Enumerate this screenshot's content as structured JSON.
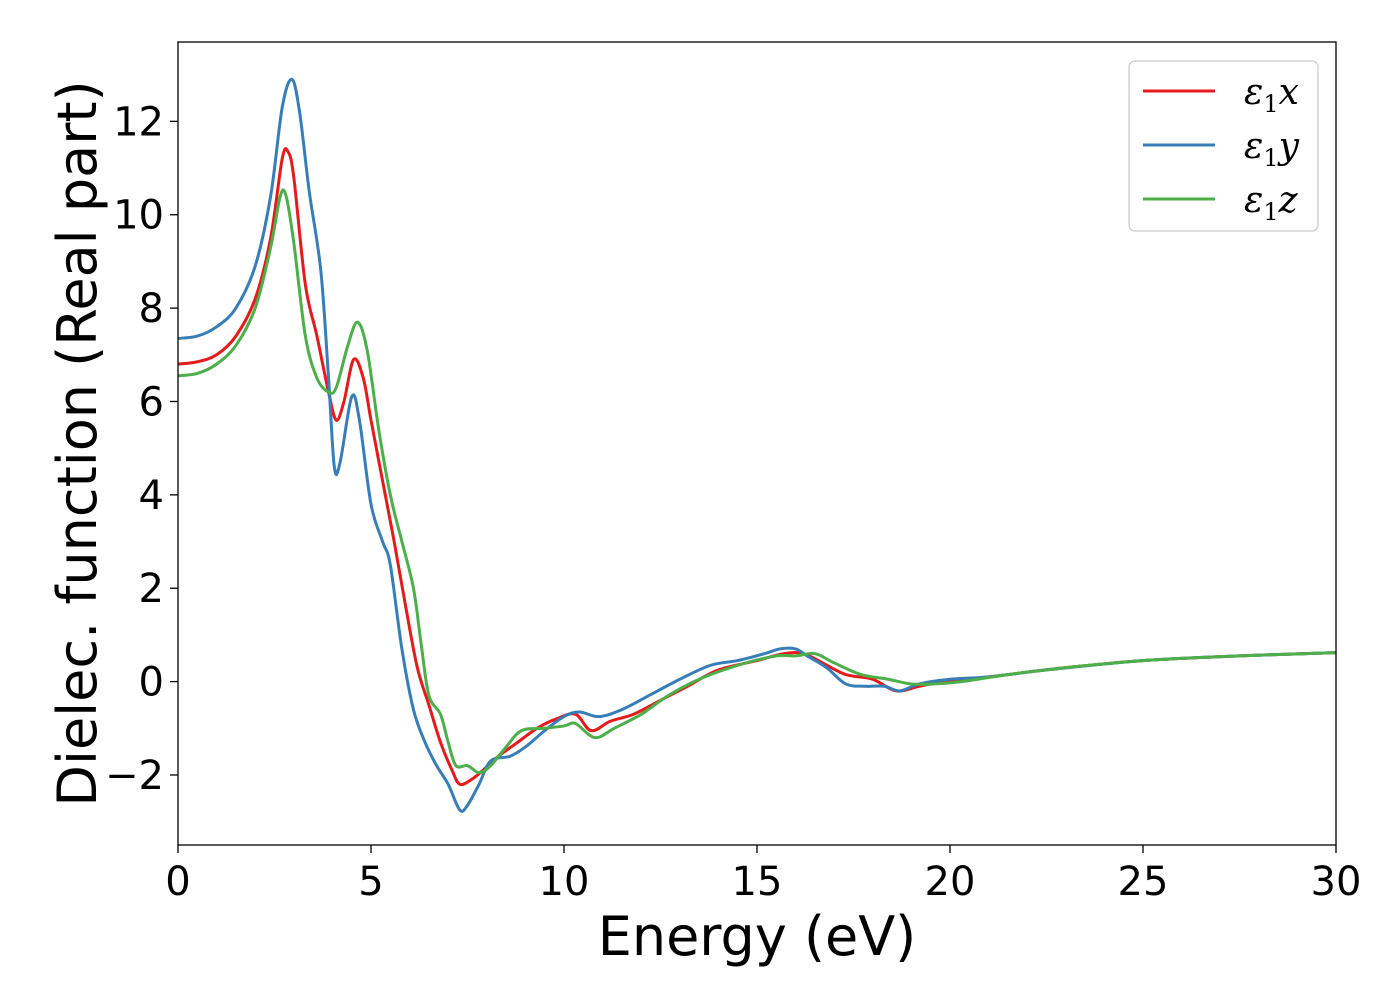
{
  "chart_data": {
    "type": "line",
    "title": "",
    "xlabel": "Energy (eV)",
    "ylabel": "Dielec. function (Real part)",
    "xlim": [
      0,
      30
    ],
    "ylim": [
      -3.5,
      13.7
    ],
    "xticks": [
      0,
      5,
      10,
      15,
      20,
      25,
      30
    ],
    "xtick_labels": [
      "0",
      "5",
      "10",
      "15",
      "20",
      "25",
      "30"
    ],
    "yticks": [
      -2,
      0,
      2,
      4,
      6,
      8,
      10,
      12
    ],
    "ytick_labels": [
      "−2",
      "0",
      "2",
      "4",
      "6",
      "8",
      "10",
      "12"
    ],
    "grid": false,
    "legend_position": "top-right",
    "series": [
      {
        "name": "ε1x",
        "legend_main": "ε",
        "legend_sub": "1",
        "legend_tail": "x",
        "color": "#e41a1c",
        "points": [
          [
            0,
            6.8
          ],
          [
            0.5,
            6.85
          ],
          [
            1,
            7.0
          ],
          [
            1.5,
            7.4
          ],
          [
            2,
            8.2
          ],
          [
            2.4,
            9.5
          ],
          [
            2.7,
            11.2
          ],
          [
            2.85,
            11.35
          ],
          [
            3.0,
            10.8
          ],
          [
            3.3,
            8.5
          ],
          [
            3.6,
            7.4
          ],
          [
            3.9,
            6.2
          ],
          [
            4.1,
            5.6
          ],
          [
            4.3,
            6.0
          ],
          [
            4.55,
            6.9
          ],
          [
            4.8,
            6.5
          ],
          [
            5.0,
            5.6
          ],
          [
            5.3,
            4.3
          ],
          [
            5.6,
            3.0
          ],
          [
            5.9,
            1.6
          ],
          [
            6.2,
            0.3
          ],
          [
            6.5,
            -0.5
          ],
          [
            6.8,
            -1.3
          ],
          [
            7.1,
            -1.9
          ],
          [
            7.3,
            -2.2
          ],
          [
            7.6,
            -2.1
          ],
          [
            7.9,
            -1.9
          ],
          [
            8.3,
            -1.6
          ],
          [
            8.8,
            -1.3
          ],
          [
            9.3,
            -1.0
          ],
          [
            9.8,
            -0.8
          ],
          [
            10.3,
            -0.7
          ],
          [
            10.7,
            -1.05
          ],
          [
            11.2,
            -0.85
          ],
          [
            11.8,
            -0.7
          ],
          [
            12.5,
            -0.4
          ],
          [
            13.2,
            -0.1
          ],
          [
            14.0,
            0.25
          ],
          [
            15.0,
            0.45
          ],
          [
            15.7,
            0.6
          ],
          [
            16.2,
            0.6
          ],
          [
            16.7,
            0.4
          ],
          [
            17.3,
            0.15
          ],
          [
            18.0,
            0.05
          ],
          [
            18.6,
            -0.2
          ],
          [
            19.2,
            -0.1
          ],
          [
            19.8,
            0.0
          ],
          [
            20.5,
            0.05
          ],
          [
            21.5,
            0.15
          ],
          [
            23,
            0.3
          ],
          [
            25,
            0.45
          ],
          [
            27.5,
            0.55
          ],
          [
            30,
            0.62
          ]
        ]
      },
      {
        "name": "ε1y",
        "legend_main": "ε",
        "legend_sub": "1",
        "legend_tail": "y",
        "color": "#377eb8",
        "points": [
          [
            0,
            7.35
          ],
          [
            0.5,
            7.4
          ],
          [
            1,
            7.6
          ],
          [
            1.5,
            8.0
          ],
          [
            2,
            8.9
          ],
          [
            2.4,
            10.4
          ],
          [
            2.7,
            12.3
          ],
          [
            2.95,
            12.9
          ],
          [
            3.15,
            12.2
          ],
          [
            3.4,
            10.5
          ],
          [
            3.7,
            8.8
          ],
          [
            3.9,
            6.5
          ],
          [
            4.05,
            4.6
          ],
          [
            4.2,
            4.7
          ],
          [
            4.5,
            6.1
          ],
          [
            4.7,
            5.6
          ],
          [
            5.0,
            3.8
          ],
          [
            5.3,
            3.0
          ],
          [
            5.5,
            2.5
          ],
          [
            5.8,
            0.7
          ],
          [
            6.1,
            -0.6
          ],
          [
            6.4,
            -1.3
          ],
          [
            6.7,
            -1.8
          ],
          [
            7.0,
            -2.2
          ],
          [
            7.3,
            -2.75
          ],
          [
            7.5,
            -2.65
          ],
          [
            7.8,
            -2.2
          ],
          [
            8.1,
            -1.7
          ],
          [
            8.6,
            -1.6
          ],
          [
            9.0,
            -1.4
          ],
          [
            9.5,
            -1.05
          ],
          [
            10.0,
            -0.75
          ],
          [
            10.4,
            -0.65
          ],
          [
            10.9,
            -0.75
          ],
          [
            11.5,
            -0.6
          ],
          [
            12.2,
            -0.3
          ],
          [
            13.0,
            0.05
          ],
          [
            13.8,
            0.35
          ],
          [
            14.5,
            0.45
          ],
          [
            15.2,
            0.6
          ],
          [
            15.6,
            0.7
          ],
          [
            16.0,
            0.7
          ],
          [
            16.3,
            0.55
          ],
          [
            16.8,
            0.3
          ],
          [
            17.3,
            -0.05
          ],
          [
            17.8,
            -0.1
          ],
          [
            18.3,
            -0.1
          ],
          [
            18.7,
            -0.2
          ],
          [
            19.2,
            -0.05
          ],
          [
            20.0,
            0.05
          ],
          [
            21.0,
            0.1
          ],
          [
            22.5,
            0.25
          ],
          [
            25,
            0.45
          ],
          [
            27.5,
            0.55
          ],
          [
            30,
            0.62
          ]
        ]
      },
      {
        "name": "ε1z",
        "legend_main": "ε",
        "legend_sub": "1",
        "legend_tail": "z",
        "color": "#4daf4a",
        "points": [
          [
            0,
            6.55
          ],
          [
            0.5,
            6.6
          ],
          [
            1,
            6.8
          ],
          [
            1.5,
            7.2
          ],
          [
            2,
            8.0
          ],
          [
            2.4,
            9.3
          ],
          [
            2.65,
            10.4
          ],
          [
            2.8,
            10.4
          ],
          [
            3.0,
            9.4
          ],
          [
            3.3,
            7.4
          ],
          [
            3.6,
            6.5
          ],
          [
            3.9,
            6.2
          ],
          [
            4.1,
            6.3
          ],
          [
            4.4,
            7.2
          ],
          [
            4.65,
            7.7
          ],
          [
            4.9,
            7.1
          ],
          [
            5.2,
            5.4
          ],
          [
            5.5,
            4.0
          ],
          [
            5.8,
            3.0
          ],
          [
            6.1,
            2.0
          ],
          [
            6.3,
            0.8
          ],
          [
            6.5,
            -0.3
          ],
          [
            6.8,
            -0.7
          ],
          [
            7.0,
            -1.3
          ],
          [
            7.2,
            -1.8
          ],
          [
            7.5,
            -1.8
          ],
          [
            7.8,
            -1.95
          ],
          [
            8.1,
            -1.8
          ],
          [
            8.5,
            -1.4
          ],
          [
            8.9,
            -1.05
          ],
          [
            9.5,
            -1.0
          ],
          [
            10.0,
            -0.95
          ],
          [
            10.3,
            -0.9
          ],
          [
            10.8,
            -1.2
          ],
          [
            11.3,
            -1.0
          ],
          [
            12.0,
            -0.7
          ],
          [
            12.7,
            -0.3
          ],
          [
            13.5,
            0.05
          ],
          [
            14.5,
            0.35
          ],
          [
            15.5,
            0.55
          ],
          [
            16.0,
            0.55
          ],
          [
            16.5,
            0.6
          ],
          [
            17.0,
            0.4
          ],
          [
            17.7,
            0.15
          ],
          [
            18.4,
            0.05
          ],
          [
            19.0,
            -0.05
          ],
          [
            19.6,
            -0.05
          ],
          [
            20.3,
            0.0
          ],
          [
            21.5,
            0.15
          ],
          [
            23,
            0.3
          ],
          [
            25,
            0.45
          ],
          [
            27.5,
            0.55
          ],
          [
            30,
            0.62
          ]
        ]
      }
    ]
  }
}
